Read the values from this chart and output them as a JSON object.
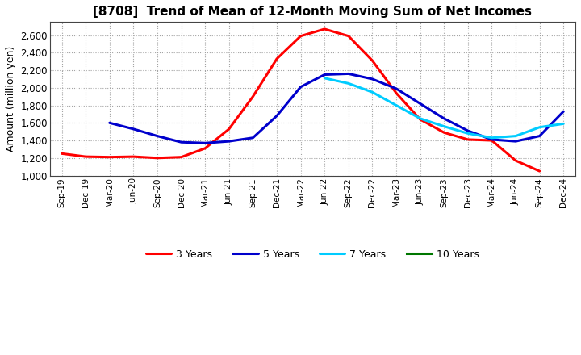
{
  "title": "[8708]  Trend of Mean of 12-Month Moving Sum of Net Incomes",
  "ylabel": "Amount (million yen)",
  "background_color": "#ffffff",
  "grid_color": "#999999",
  "x_labels": [
    "Sep-19",
    "Dec-19",
    "Mar-20",
    "Jun-20",
    "Sep-20",
    "Dec-20",
    "Mar-21",
    "Jun-21",
    "Sep-21",
    "Dec-21",
    "Mar-22",
    "Jun-22",
    "Sep-22",
    "Dec-22",
    "Mar-23",
    "Jun-23",
    "Sep-23",
    "Dec-23",
    "Mar-24",
    "Jun-24",
    "Sep-24",
    "Dec-24"
  ],
  "ylim": [
    1000,
    2750
  ],
  "yticks": [
    1000,
    1200,
    1400,
    1600,
    1800,
    2000,
    2200,
    2400,
    2600
  ],
  "series": {
    "3 Years": {
      "color": "#ff0000",
      "values": [
        1250,
        1215,
        1210,
        1215,
        1200,
        1210,
        1310,
        1530,
        1900,
        2330,
        2590,
        2670,
        2590,
        2310,
        1940,
        1640,
        1490,
        1410,
        1400,
        1170,
        1050,
        null
      ]
    },
    "5 Years": {
      "color": "#0000cc",
      "values": [
        null,
        null,
        1600,
        1530,
        1450,
        1380,
        1370,
        1390,
        1430,
        1680,
        2010,
        2150,
        2160,
        2100,
        1990,
        1820,
        1650,
        1510,
        1410,
        1390,
        1450,
        1730
      ]
    },
    "7 Years": {
      "color": "#00ccff",
      "values": [
        null,
        null,
        null,
        null,
        null,
        null,
        null,
        null,
        null,
        null,
        null,
        2110,
        2050,
        1950,
        1800,
        1650,
        1560,
        1480,
        1430,
        1450,
        1550,
        1590
      ]
    },
    "10 Years": {
      "color": "#007700",
      "values": [
        null,
        null,
        null,
        null,
        null,
        null,
        null,
        null,
        null,
        null,
        null,
        null,
        null,
        null,
        null,
        null,
        null,
        null,
        null,
        null,
        null,
        null
      ]
    }
  },
  "legend_entries": [
    "3 Years",
    "5 Years",
    "7 Years",
    "10 Years"
  ],
  "legend_colors": [
    "#ff0000",
    "#0000cc",
    "#00ccff",
    "#007700"
  ]
}
